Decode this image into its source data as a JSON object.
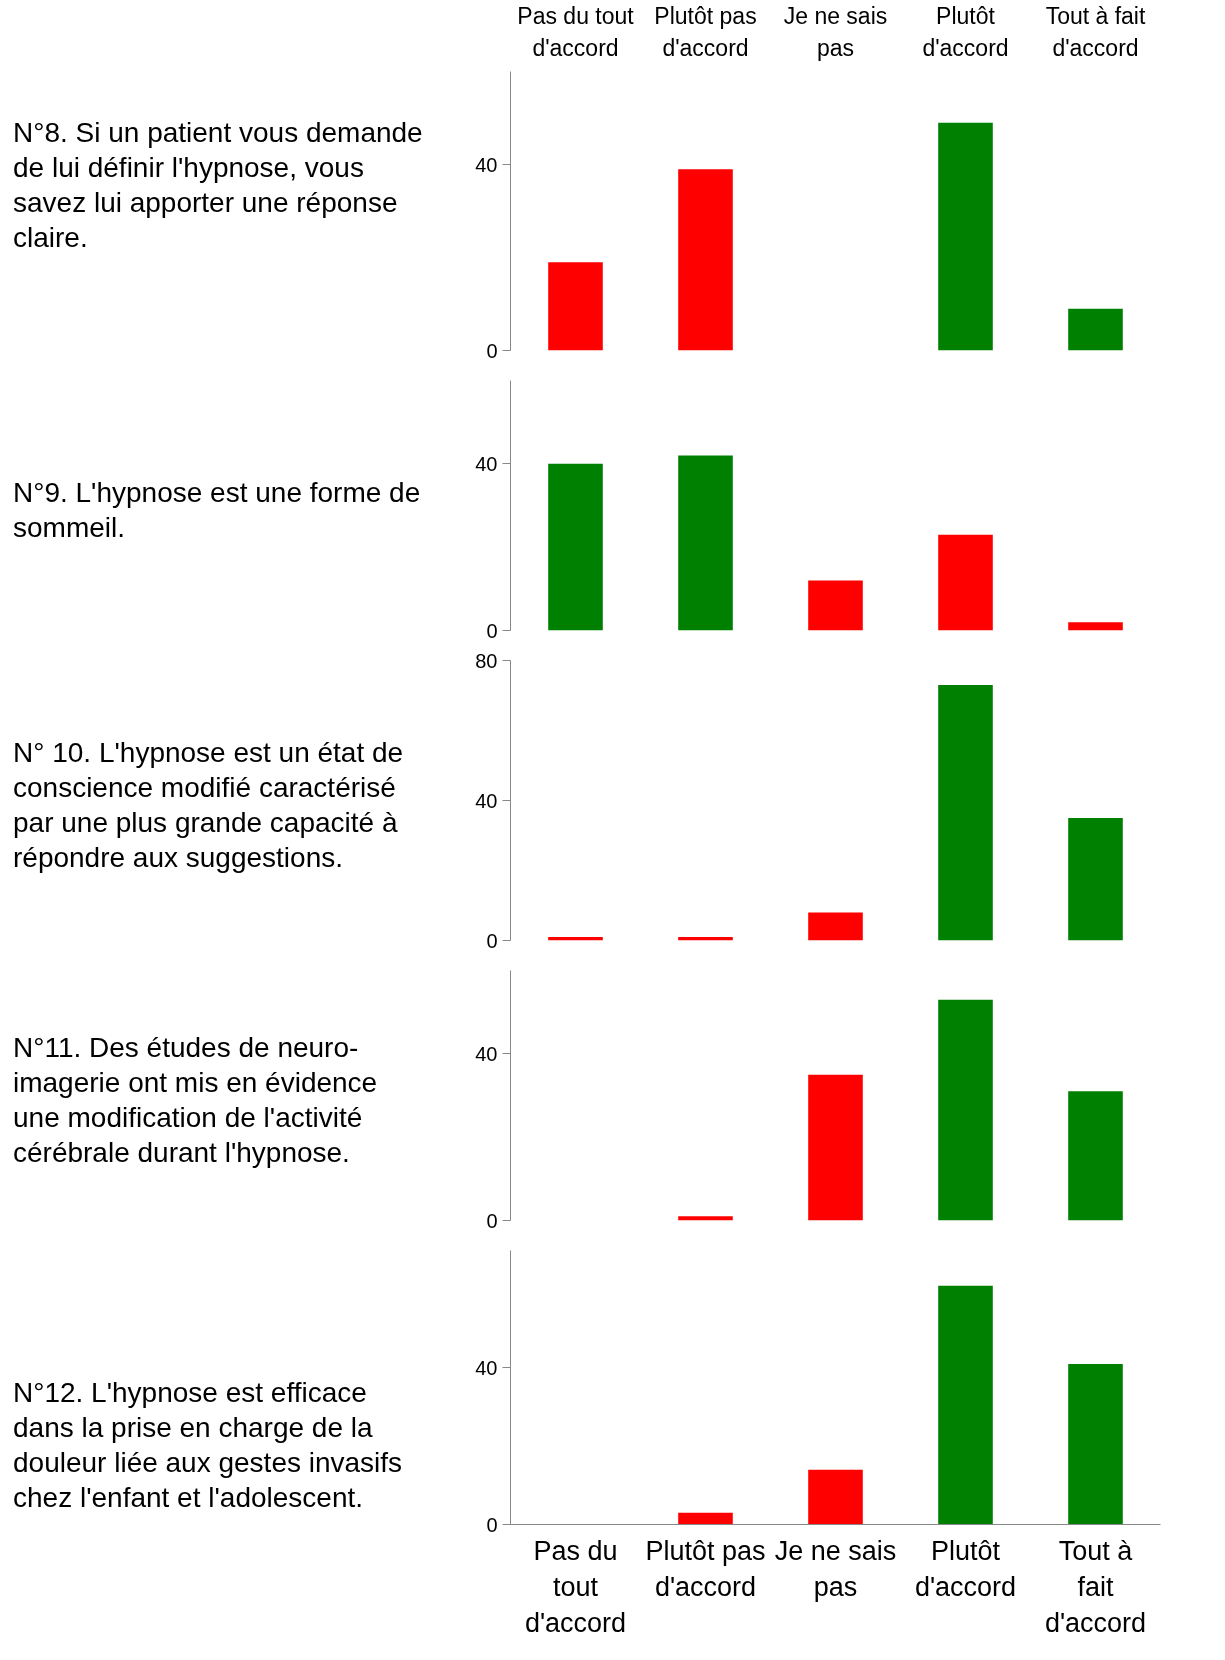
{
  "chart_data": [
    {
      "type": "bar",
      "title": "N°8. Si un patient vous demande de lui définir l'hypnose, vous savez lui apporter une réponse claire.",
      "categories": [
        "Pas du tout d'accord",
        "Plutôt pas d'accord",
        "Je ne sais pas",
        "Plutôt d'accord",
        "Tout à fait d'accord"
      ],
      "values": [
        19,
        39,
        0,
        49,
        9
      ],
      "colors": [
        "#ff0000",
        "#ff0000",
        "#ff0000",
        "#008000",
        "#008000"
      ],
      "ylim": [
        0,
        60
      ],
      "yticks": [
        0,
        40
      ],
      "grid": false
    },
    {
      "type": "bar",
      "title": "N°9. L'hypnose est une forme de sommeil.",
      "categories": [
        "Pas du tout d'accord",
        "Plutôt pas d'accord",
        "Je ne sais pas",
        "Plutôt d'accord",
        "Tout à fait d'accord"
      ],
      "values": [
        40,
        42,
        12,
        23,
        2
      ],
      "colors": [
        "#008000",
        "#008000",
        "#ff0000",
        "#ff0000",
        "#ff0000"
      ],
      "ylim": [
        0,
        60
      ],
      "yticks": [
        0,
        40
      ],
      "grid": false,
      "tick_labels": "y"
    },
    {
      "type": "bar",
      "title": "N° 10. L'hypnose est un état de conscience modifié caractérisé par une plus grande capacité à répondre aux suggestions.",
      "categories": [
        "Pas du tout d'accord",
        "Plutôt pas d'accord",
        "Je ne sais pas",
        "Plutôt d'accord",
        "Tout à fait d'accord"
      ],
      "values": [
        1,
        1,
        8,
        73,
        35
      ],
      "colors": [
        "#ff0000",
        "#ff0000",
        "#ff0000",
        "#008000",
        "#008000"
      ],
      "ylim": [
        0,
        80
      ],
      "yticks": [
        0,
        40,
        80
      ],
      "grid": false,
      "tick_labels": "y"
    },
    {
      "type": "bar",
      "title": "N°11. Des études de neuro-imagerie ont mis en évidence une modification de l'activité cérébrale durant l'hypnose.",
      "categories": [
        "Pas du tout d'accord",
        "Plutôt pas d'accord",
        "Je ne sais pas",
        "Plutôt d'accord",
        "Tout à fait d'accord"
      ],
      "values": [
        0,
        1,
        35,
        53,
        31
      ],
      "colors": [
        "#ff0000",
        "#ff0000",
        "#ff0000",
        "#008000",
        "#008000"
      ],
      "ylim": [
        0,
        60
      ],
      "yticks": [
        0,
        40
      ],
      "grid": false,
      "tick_labels": "y"
    },
    {
      "type": "bar",
      "title": "N°12. L'hypnose est efficace dans la prise en charge de la douleur liée aux gestes invasifs chez l'enfant et l'adolescent.",
      "categories": [
        "Pas du tout d'accord",
        "Plutôt pas d'accord",
        "Je ne sais pas",
        "Plutôt d'accord",
        "Tout à fait d'accord"
      ],
      "values": [
        0,
        3,
        14,
        61,
        41
      ],
      "colors": [
        "#ff0000",
        "#ff0000",
        "#ff0000",
        "#008000",
        "#008000"
      ],
      "ylim": [
        0,
        70
      ],
      "yticks": [
        0,
        40
      ],
      "grid": false
    }
  ]
}
